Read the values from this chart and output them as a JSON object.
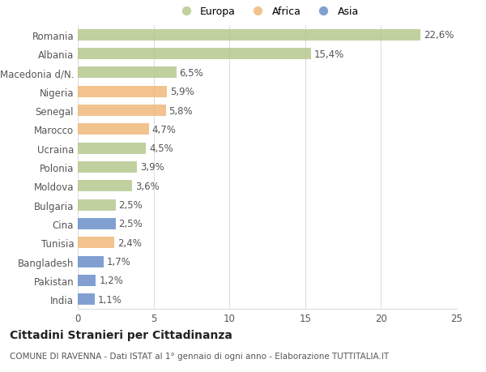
{
  "countries": [
    "Romania",
    "Albania",
    "Macedonia d/N.",
    "Nigeria",
    "Senegal",
    "Marocco",
    "Ucraina",
    "Polonia",
    "Moldova",
    "Bulgaria",
    "Cina",
    "Tunisia",
    "Bangladesh",
    "Pakistan",
    "India"
  ],
  "values": [
    22.6,
    15.4,
    6.5,
    5.9,
    5.8,
    4.7,
    4.5,
    3.9,
    3.6,
    2.5,
    2.5,
    2.4,
    1.7,
    1.2,
    1.1
  ],
  "labels": [
    "22,6%",
    "15,4%",
    "6,5%",
    "5,9%",
    "5,8%",
    "4,7%",
    "4,5%",
    "3,9%",
    "3,6%",
    "2,5%",
    "2,5%",
    "2,4%",
    "1,7%",
    "1,2%",
    "1,1%"
  ],
  "continents": [
    "Europa",
    "Europa",
    "Europa",
    "Africa",
    "Africa",
    "Africa",
    "Europa",
    "Europa",
    "Europa",
    "Europa",
    "Asia",
    "Africa",
    "Asia",
    "Asia",
    "Asia"
  ],
  "colors": {
    "Europa": "#b5c98e",
    "Africa": "#f0b97a",
    "Asia": "#6b8fc9"
  },
  "xlim": [
    0,
    25
  ],
  "xticks": [
    0,
    5,
    10,
    15,
    20,
    25
  ],
  "background_color": "#ffffff",
  "grid_color": "#dddddd",
  "title": "Cittadini Stranieri per Cittadinanza",
  "subtitle": "COMUNE DI RAVENNA - Dati ISTAT al 1° gennaio di ogni anno - Elaborazione TUTTITALIA.IT",
  "bar_height": 0.6,
  "label_fontsize": 8.5,
  "tick_fontsize": 8.5,
  "title_fontsize": 10,
  "subtitle_fontsize": 7.5
}
